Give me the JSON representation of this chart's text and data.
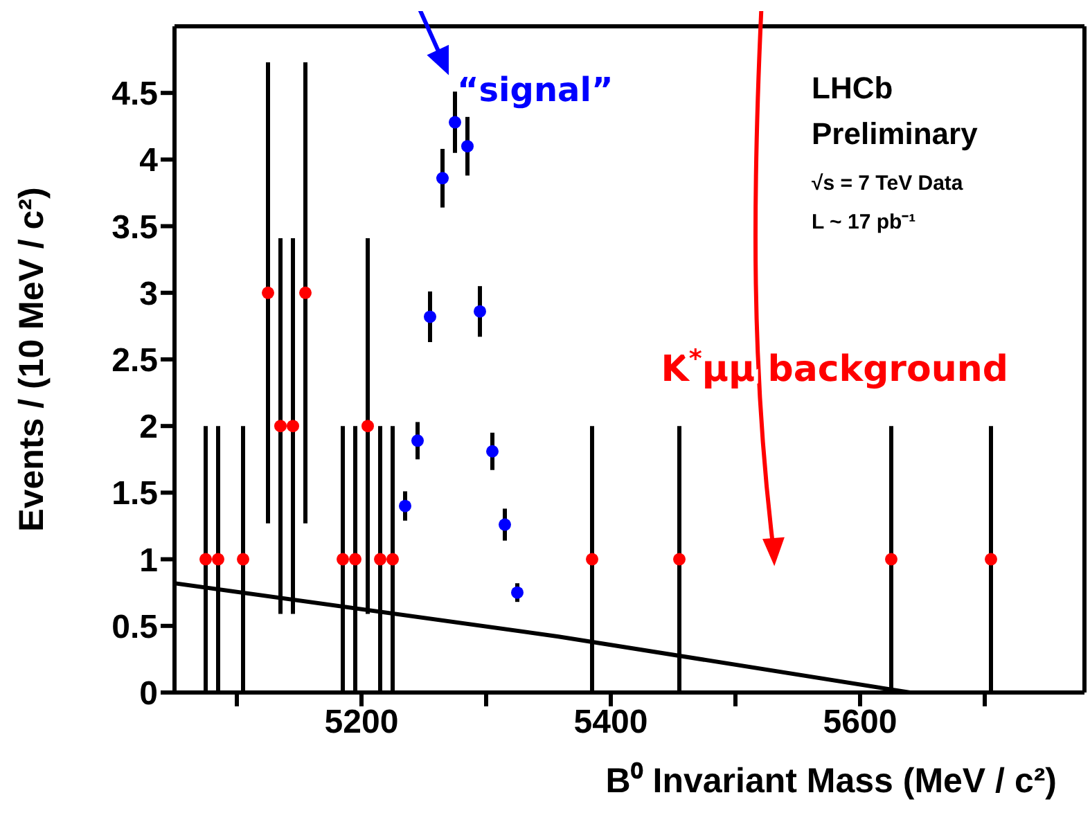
{
  "chart_data": {
    "type": "scatter",
    "xlabel": "B⁰ Invariant Mass (MeV / c²)",
    "ylabel": "Events / (10 MeV / c²)",
    "xlim": [
      5050,
      5780
    ],
    "ylim": [
      0,
      5
    ],
    "xticks": [
      {
        "value": 5100,
        "label": null
      },
      5200,
      {
        "value": 5300,
        "label": null
      },
      5400,
      {
        "value": 5500,
        "label": null
      },
      5600,
      {
        "value": 5700,
        "label": null
      }
    ],
    "yticks": [
      0,
      0.5,
      1,
      1.5,
      2,
      2.5,
      3,
      3.5,
      4,
      4.5
    ],
    "marker": "circle",
    "series": [
      {
        "color": "#ff0000",
        "x": [
          5075,
          5085,
          5105,
          5125,
          5135,
          5145,
          5155,
          5185,
          5195,
          5205,
          5215,
          5225,
          5385,
          5455,
          5625,
          5705
        ],
        "values": [
          1,
          1,
          1,
          3,
          2,
          2,
          3,
          1,
          1,
          2,
          1,
          1,
          1,
          1,
          1,
          1
        ],
        "errors": [
          1,
          1,
          1,
          1.73,
          1.41,
          1.41,
          1.73,
          1,
          1,
          1.41,
          1,
          1,
          1,
          1,
          1,
          1
        ]
      },
      {
        "color": "#0000ff",
        "x": [
          5235,
          5245,
          5255,
          5265,
          5275,
          5285,
          5295,
          5305,
          5315,
          5325
        ],
        "values": [
          1.4,
          1.89,
          2.82,
          3.86,
          4.28,
          4.1,
          2.86,
          1.81,
          1.26,
          0.75
        ],
        "errors": [
          0.11,
          0.14,
          0.19,
          0.22,
          0.23,
          0.22,
          0.19,
          0.14,
          0.12,
          0.07
        ]
      },
      {
        "type": "line",
        "marker": "none",
        "color": "#000000",
        "line_style": "solid",
        "x": [
          5050,
          5358,
          5640
        ],
        "values": [
          0.82,
          0.42,
          0
        ]
      }
    ],
    "annotations": [
      "“signal”",
      "K$^{*}$μμ background",
      "LHCb",
      "Preliminary",
      "√s = 7 TeV Data",
      "L ~ 17 pb⁻¹"
    ]
  }
}
